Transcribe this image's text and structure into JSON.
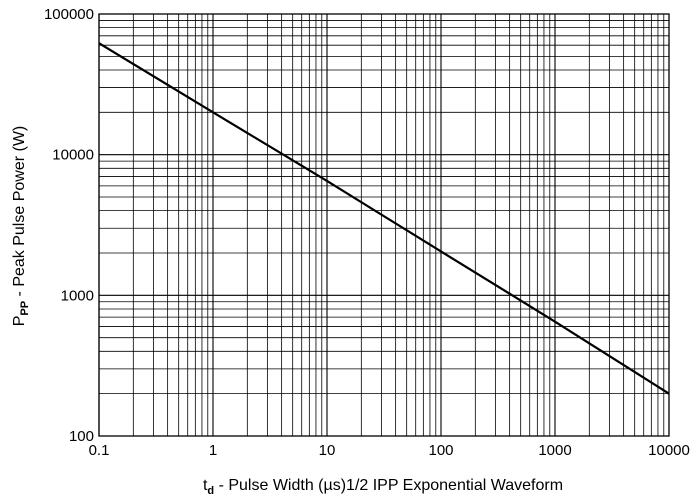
{
  "chart_data": {
    "type": "line",
    "title": "",
    "x_scale": "log",
    "y_scale": "log",
    "xlim": [
      0.1,
      10000
    ],
    "ylim": [
      100,
      100000
    ],
    "grid": true,
    "legend": "none",
    "x_ticks": [
      0.1,
      1,
      10,
      100,
      1000,
      10000
    ],
    "x_tick_labels": [
      "0.1",
      "1",
      "10",
      "100",
      "1000",
      "10000"
    ],
    "y_ticks": [
      100,
      1000,
      10000,
      100000
    ],
    "y_tick_labels": [
      "100",
      "1000",
      "10000",
      "100000"
    ],
    "xlabel": {
      "main": "t",
      "subscript": "d",
      "rest": " - Pulse Width (µs)1/2 IPP Exponential Waveform"
    },
    "ylabel": {
      "main": "P",
      "subscript": "PP",
      "rest": " - Peak Pulse Power (W)"
    },
    "series": [
      {
        "x": [
          0.1,
          1,
          10,
          100,
          1000,
          10000
        ],
        "y": [
          62000,
          20000,
          6500,
          2050,
          650,
          200
        ]
      }
    ],
    "colors": {
      "line": "#000000",
      "grid": "#000000"
    }
  }
}
